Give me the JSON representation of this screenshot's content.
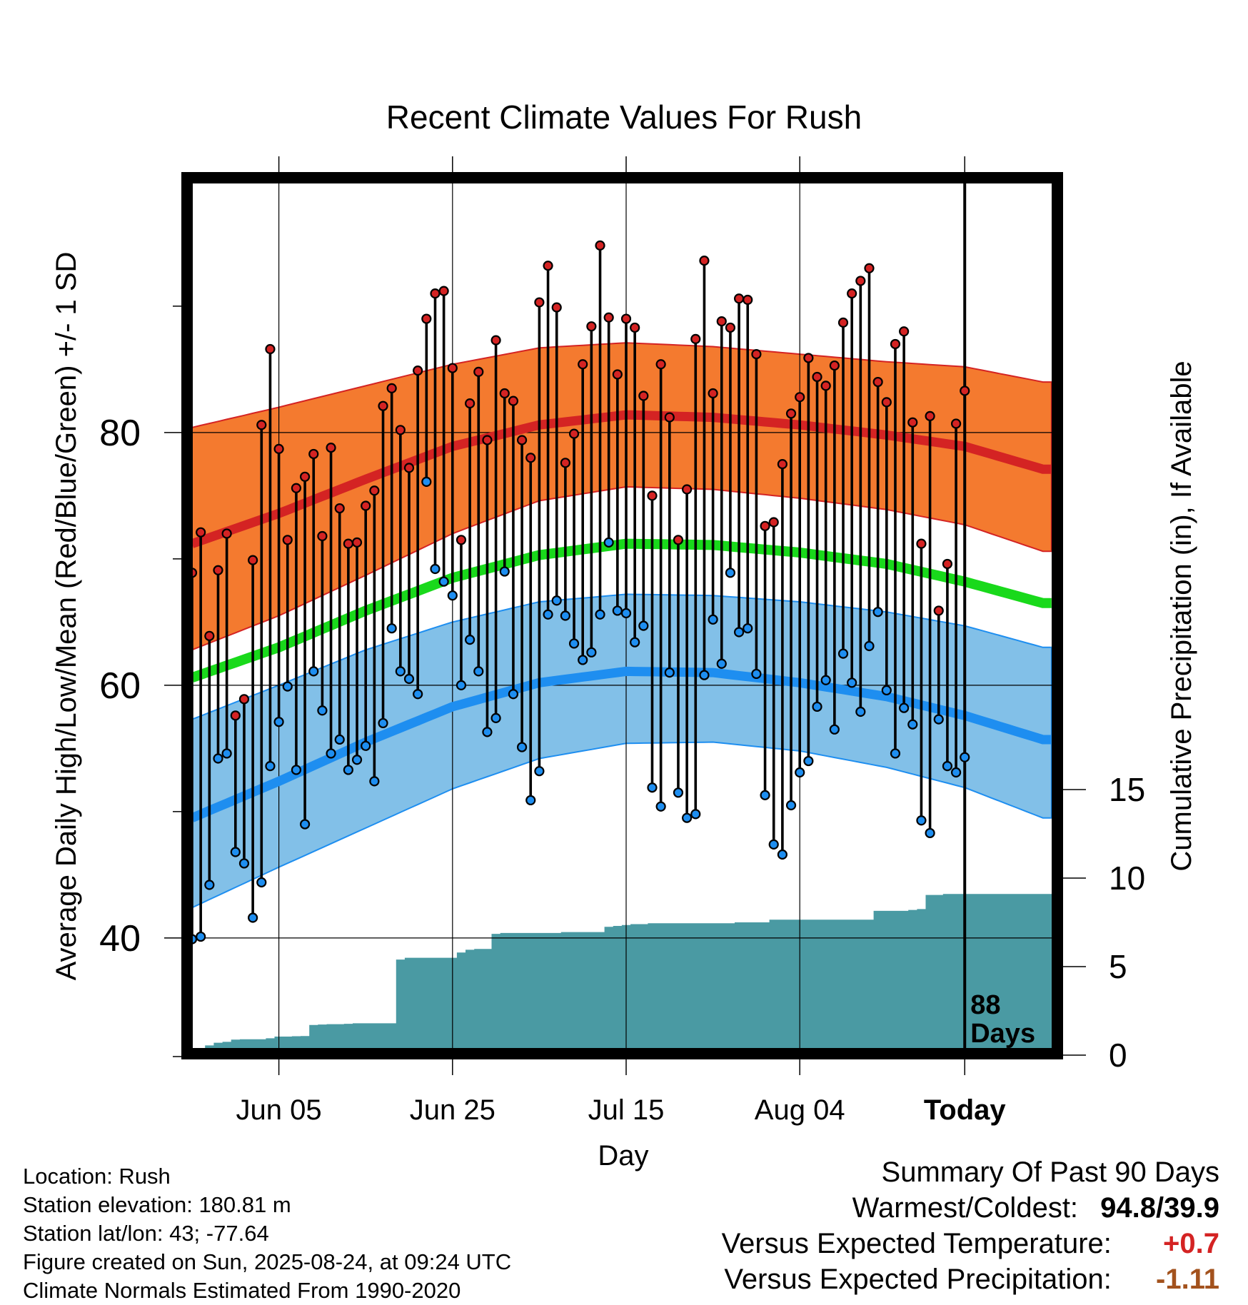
{
  "chart_data": {
    "type": "line",
    "title": "Recent Climate Values For Rush",
    "ylabel": "Average Daily High/Low/Mean (Red/Blue/Green) +/- 1 SD",
    "ylabel_right": "Cumulative Precipitation (in), If Available",
    "xlabel": "Day",
    "ylim": [
      30.5,
      100.5
    ],
    "y_ticks": [
      40,
      60,
      80
    ],
    "y2lim": [
      0,
      40
    ],
    "y2_ticks": [
      0,
      5,
      10,
      15
    ],
    "x_range_days": [
      -89,
      10
    ],
    "x_ticks": [
      {
        "day": -79,
        "label": "Jun 05"
      },
      {
        "day": -59,
        "label": "Jun 25"
      },
      {
        "day": -39,
        "label": "Jul 15"
      },
      {
        "day": -19,
        "label": "Aug 04"
      },
      {
        "day": 0,
        "label": "Today"
      }
    ],
    "today_label": "88\nDays",
    "colors": {
      "high_band": "#f47a2f",
      "high_line": "#d42323",
      "low_band": "#82c0e8",
      "low_line": "#1e8ef0",
      "mean_line": "#19d91b",
      "precip": "#4a9aa3",
      "high_marker": "#d42323",
      "low_marker": "#1e8ef0"
    },
    "normals": {
      "day": [
        -89,
        -79,
        -69,
        -59,
        -49,
        -39,
        -29,
        -19,
        -9,
        0,
        9
      ],
      "high_mean": [
        71.2,
        73.6,
        76.3,
        78.9,
        80.6,
        81.4,
        81.2,
        80.6,
        79.8,
        78.9,
        77.1
      ],
      "high_sd_upper": [
        80.4,
        82.0,
        83.7,
        85.4,
        86.7,
        87.1,
        86.8,
        86.2,
        85.6,
        85.2,
        84.0
      ],
      "high_sd_lower": [
        62.8,
        65.5,
        68.7,
        72.0,
        74.6,
        75.7,
        75.5,
        74.8,
        73.9,
        72.7,
        70.6
      ],
      "low_mean": [
        49.5,
        52.4,
        55.5,
        58.3,
        60.2,
        61.1,
        61.0,
        60.2,
        59.1,
        57.6,
        55.7
      ],
      "low_sd_upper": [
        57.3,
        60.0,
        62.8,
        65.0,
        66.6,
        67.2,
        67.1,
        66.6,
        65.8,
        64.7,
        63.0
      ],
      "low_sd_lower": [
        42.4,
        45.6,
        48.7,
        51.8,
        54.2,
        55.4,
        55.5,
        54.8,
        53.5,
        51.9,
        49.5
      ],
      "mean": [
        60.6,
        63.0,
        65.9,
        68.5,
        70.3,
        71.2,
        71.1,
        70.5,
        69.6,
        68.2,
        66.5
      ]
    },
    "series": [
      {
        "name": "High",
        "values": [
          68.9,
          72.1,
          63.9,
          69.1,
          72.0,
          57.6,
          58.9,
          69.9,
          80.6,
          86.6,
          78.7,
          71.5,
          75.6,
          76.5,
          78.3,
          71.8,
          78.8,
          74.0,
          71.2,
          71.3,
          74.2,
          75.4,
          82.1,
          83.5,
          80.2,
          77.2,
          84.9,
          89.0,
          91.0,
          91.2,
          85.1,
          71.5,
          82.3,
          84.8,
          79.4,
          87.3,
          83.1,
          82.5,
          79.4,
          78.0,
          90.3,
          93.2,
          89.9,
          77.6,
          79.9,
          85.4,
          88.4,
          94.8,
          89.1,
          84.6,
          89.0,
          88.3,
          82.9,
          75.0,
          85.4,
          81.2,
          71.5,
          75.5,
          87.4,
          93.6,
          83.1,
          88.8,
          88.3,
          90.6,
          90.5,
          86.2,
          72.6,
          72.9,
          77.5,
          81.5,
          82.8,
          85.9,
          84.4,
          83.7,
          85.3,
          88.7,
          91.0,
          92.0,
          93.0,
          84.0,
          82.4,
          87.0,
          88.0,
          80.8,
          71.2,
          81.3,
          65.9,
          69.6,
          80.7,
          83.3
        ]
      },
      {
        "name": "Low",
        "values": [
          39.9,
          40.1,
          44.2,
          54.2,
          54.6,
          46.8,
          45.9,
          41.6,
          44.4,
          53.6,
          57.1,
          59.9,
          53.3,
          49.0,
          61.1,
          58.0,
          54.6,
          55.7,
          53.3,
          54.1,
          55.2,
          52.4,
          57.0,
          64.5,
          61.1,
          60.5,
          59.3,
          76.1,
          69.2,
          68.2,
          67.1,
          60.0,
          63.6,
          61.1,
          56.3,
          57.4,
          69.0,
          59.3,
          55.1,
          50.9,
          53.2,
          65.6,
          66.7,
          65.5,
          63.3,
          62.0,
          62.6,
          65.6,
          71.3,
          65.9,
          65.7,
          63.4,
          64.7,
          51.9,
          50.4,
          61.0,
          51.5,
          49.5,
          49.8,
          60.8,
          65.2,
          61.7,
          68.9,
          64.2,
          64.5,
          60.9,
          51.3,
          47.4,
          46.6,
          50.5,
          53.1,
          54.0,
          58.3,
          60.4,
          56.5,
          62.5,
          60.2,
          57.9,
          63.1,
          65.8,
          59.6,
          54.6,
          58.2,
          56.9,
          49.3,
          48.3,
          57.3,
          53.6,
          53.1,
          54.3
        ]
      },
      {
        "name": "Cumulative Precipitation",
        "values": [
          0.0,
          0.0,
          0.55,
          0.7,
          0.75,
          0.88,
          0.9,
          0.9,
          0.9,
          0.95,
          1.05,
          1.05,
          1.07,
          1.08,
          1.7,
          1.73,
          1.75,
          1.75,
          1.77,
          1.8,
          1.8,
          1.8,
          1.8,
          1.8,
          5.4,
          5.5,
          5.5,
          5.5,
          5.5,
          5.5,
          5.5,
          5.8,
          5.95,
          6.0,
          6.0,
          6.85,
          6.9,
          6.9,
          6.9,
          6.9,
          6.9,
          6.9,
          6.9,
          6.95,
          6.95,
          6.95,
          6.95,
          6.95,
          7.25,
          7.3,
          7.35,
          7.4,
          7.4,
          7.45,
          7.45,
          7.45,
          7.45,
          7.45,
          7.45,
          7.45,
          7.45,
          7.45,
          7.45,
          7.5,
          7.5,
          7.5,
          7.5,
          7.65,
          7.65,
          7.65,
          7.65,
          7.65,
          7.65,
          7.65,
          7.65,
          7.65,
          7.65,
          7.65,
          7.65,
          8.15,
          8.15,
          8.15,
          8.15,
          8.2,
          8.25,
          9.05,
          9.05,
          9.1,
          9.1,
          9.1,
          9.1
        ]
      }
    ]
  },
  "footer": {
    "location": "Location: Rush",
    "elevation": "Station elevation: 180.81 m",
    "latlon": "Station lat/lon: 43; -77.64",
    "created": "Figure created on Sun, 2025-08-24, at 09:24 UTC",
    "normals": "Climate Normals Estimated From 1990-2020"
  },
  "summary": {
    "title": "Summary Of Past 90 Days",
    "warm_cold_label": "Warmest/Coldest:",
    "warm_cold_value": "94.8/39.9",
    "temp_label": "Versus Expected Temperature:",
    "temp_value": "+0.7",
    "temp_color": "#d42323",
    "precip_label": "Versus Expected Precipitation:",
    "precip_value": "-1.11",
    "precip_color": "#a3521d"
  }
}
